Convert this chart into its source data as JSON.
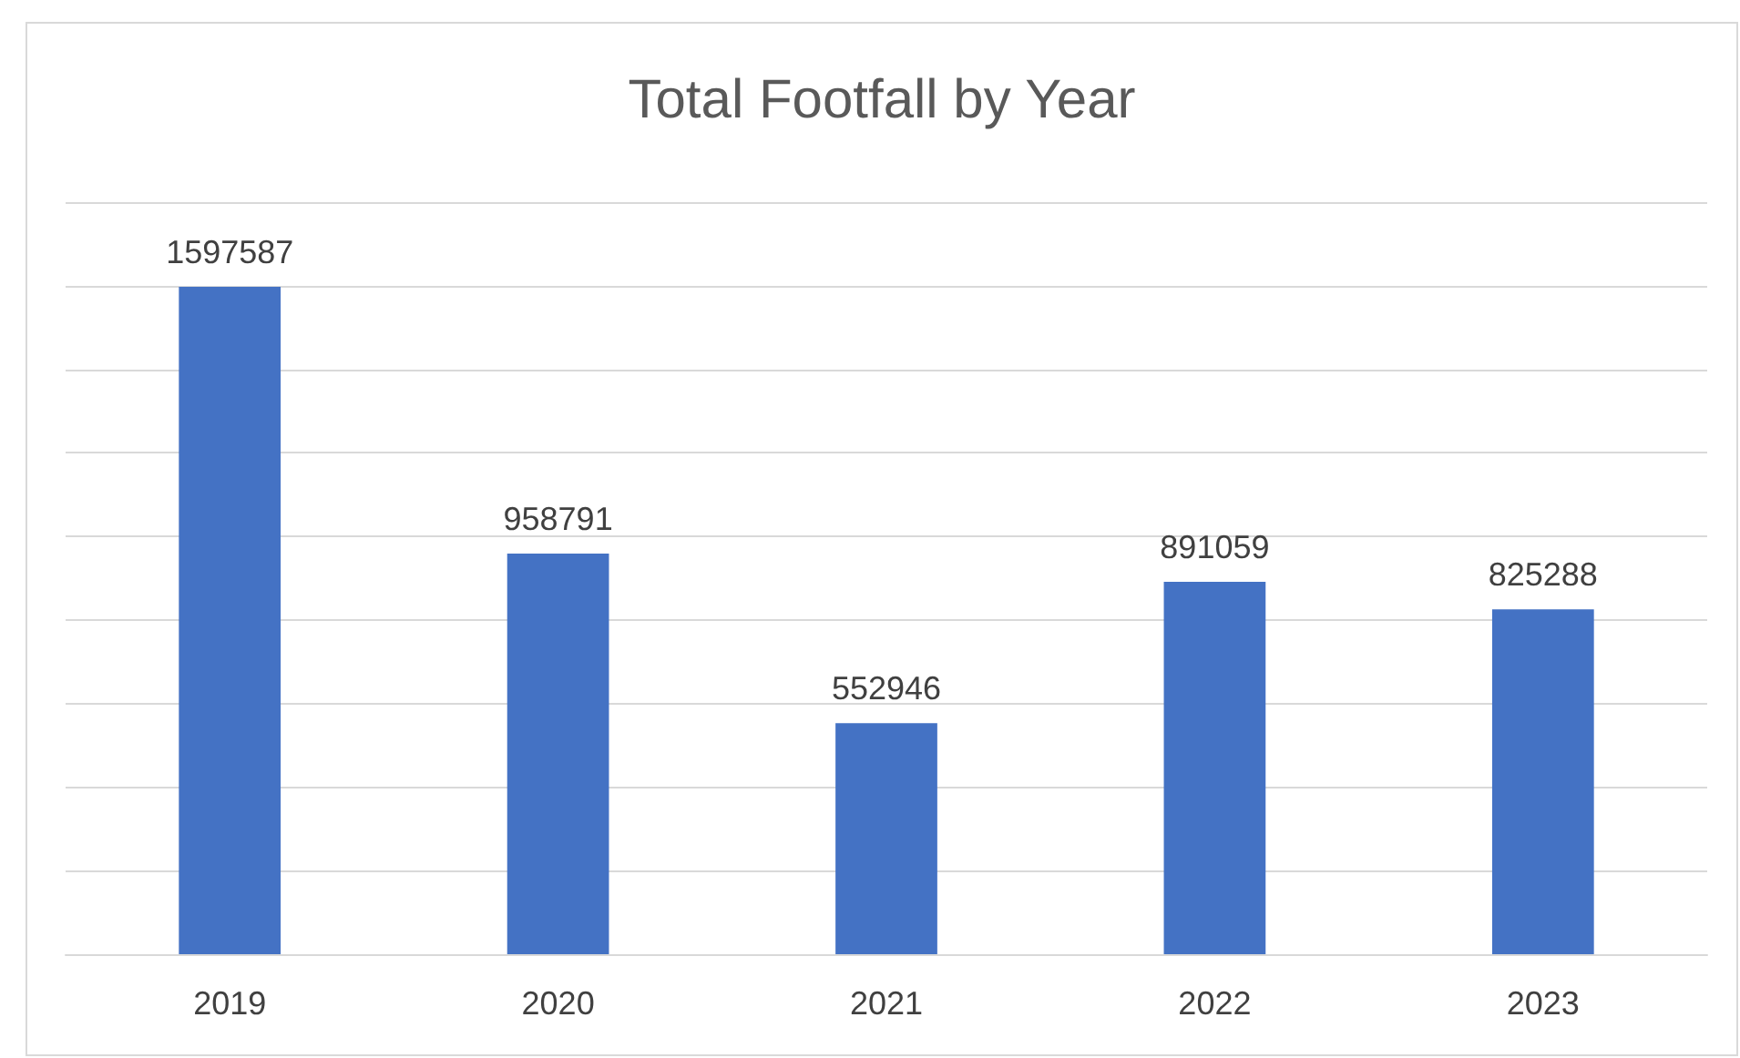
{
  "chart_data": {
    "type": "bar",
    "title": "Total Footfall by Year",
    "categories": [
      "2019",
      "2020",
      "2021",
      "2022",
      "2023"
    ],
    "values": [
      1597587,
      958791,
      552946,
      891059,
      825288
    ],
    "color": "#4472c4",
    "ylim": [
      0,
      1800000
    ],
    "yticks": [
      {
        "value": 0,
        "label": null
      },
      {
        "value": 200000,
        "label": null
      },
      {
        "value": 400000,
        "label": null
      },
      {
        "value": 600000,
        "label": null
      },
      {
        "value": 800000,
        "label": null
      },
      {
        "value": 1000000,
        "label": null
      },
      {
        "value": 1200000,
        "label": null
      },
      {
        "value": 1400000,
        "label": null
      },
      {
        "value": 1600000,
        "label": null
      },
      {
        "value": 1800000,
        "label": null
      }
    ],
    "tick_labels": "x",
    "grid": "y",
    "data_labels": true
  }
}
